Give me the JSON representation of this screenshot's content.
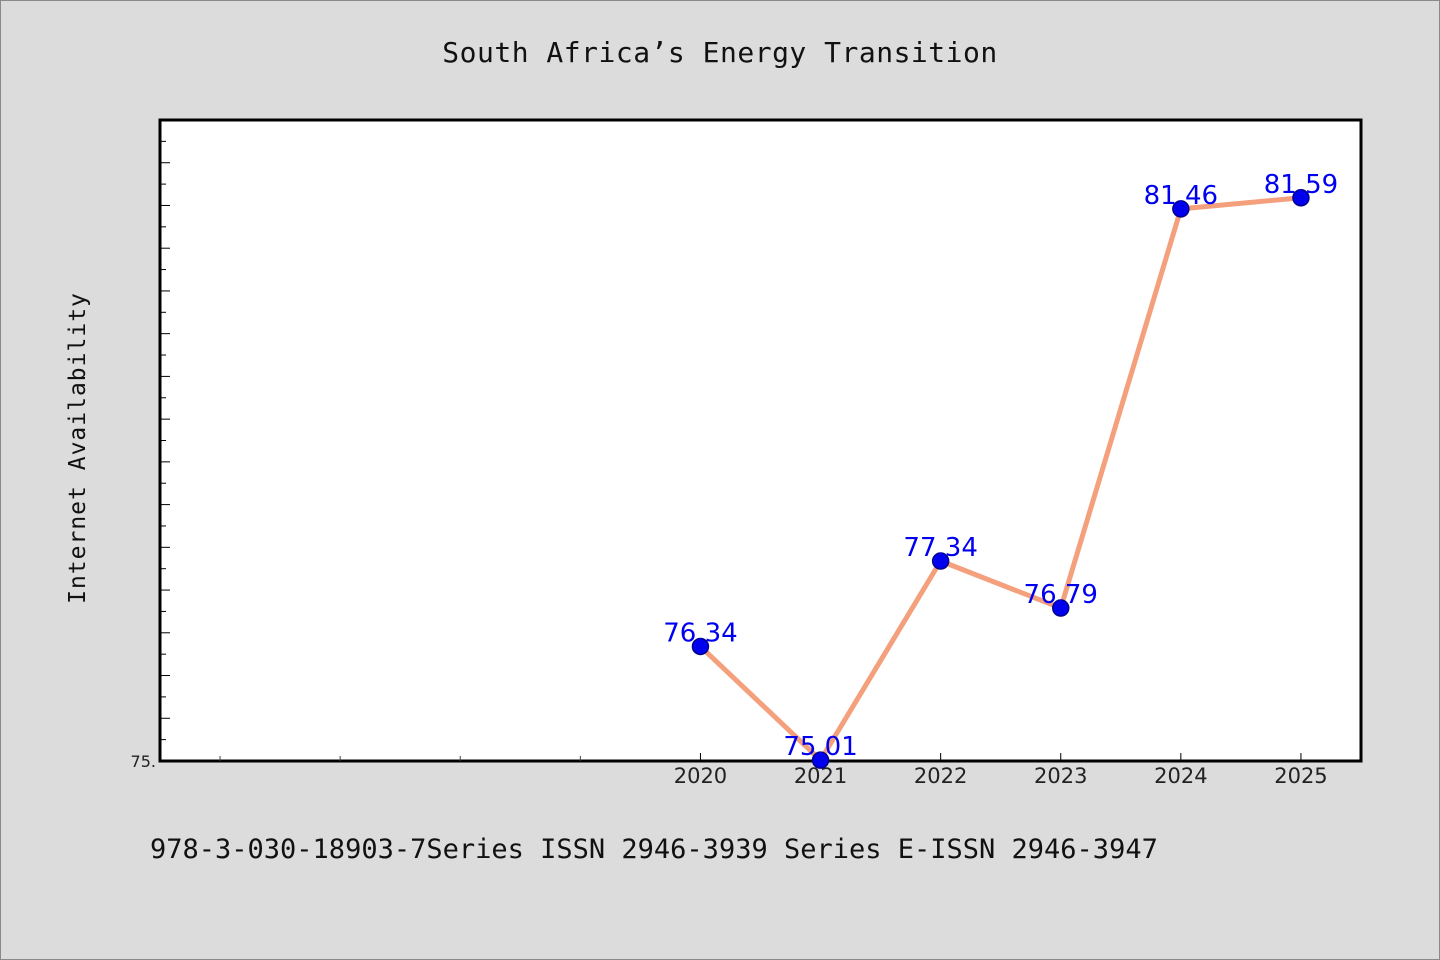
{
  "chart_data": {
    "type": "line",
    "title": "South Africa’s Energy Transition",
    "ylabel": "Internet Availability",
    "xlabel": "",
    "x_range": [
      2015.5,
      2025.5
    ],
    "ylim": [
      75.0,
      82.5
    ],
    "y_tick_labels": [
      {
        "value": 75.0,
        "text": "75."
      }
    ],
    "x_tick_labels": [
      "2020",
      "2021",
      "2022",
      "2023",
      "2024",
      "2025"
    ],
    "series": [
      {
        "x": [
          2020,
          2021,
          2022,
          2023,
          2024,
          2025
        ],
        "values": [
          76.34,
          75.01,
          77.34,
          76.79,
          81.46,
          81.59
        ],
        "labels": [
          "76.34",
          "75.01",
          "77.34",
          "76.79",
          "81.46",
          "81.59"
        ]
      }
    ],
    "colors": {
      "line": "#f4a07c",
      "marker_fill": "#0000ee",
      "marker_edge": "#00008b",
      "data_label": "#0000ee",
      "plot_background": "#ffffff",
      "figure_background": "#dcdcdc"
    },
    "grid": false,
    "legend": "none"
  },
  "footer": {
    "text": "978-3-030-18903-7Series ISSN 2946-3939 Series E-ISSN 2946-3947"
  }
}
